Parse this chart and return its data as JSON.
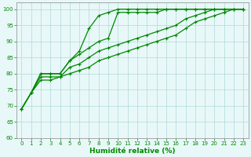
{
  "title": "",
  "xlabel": "Humidité relative (%)",
  "ylabel": "",
  "xlim": [
    -0.5,
    23.5
  ],
  "ylim": [
    60,
    102
  ],
  "yticks": [
    60,
    65,
    70,
    75,
    80,
    85,
    90,
    95,
    100
  ],
  "xticks": [
    0,
    1,
    2,
    3,
    4,
    5,
    6,
    7,
    8,
    9,
    10,
    11,
    12,
    13,
    14,
    15,
    16,
    17,
    18,
    19,
    20,
    21,
    22,
    23
  ],
  "background_color": "#e8f8f8",
  "plot_bg_color": "#e8f8f8",
  "grid_color": "#b0d8d8",
  "line_color": "#008800",
  "series": [
    {
      "x": [
        0,
        1,
        2,
        3,
        4,
        5,
        6,
        7,
        8,
        9,
        10,
        11,
        12,
        13,
        14,
        15,
        16,
        17,
        18,
        19,
        20,
        21,
        22,
        23
      ],
      "y": [
        69,
        74,
        80,
        80,
        80,
        84,
        87,
        94,
        98,
        99,
        100,
        100,
        100,
        100,
        100,
        100,
        100,
        100,
        100,
        100,
        100,
        100,
        100,
        100
      ]
    },
    {
      "x": [
        0,
        1,
        2,
        3,
        4,
        5,
        6,
        7,
        8,
        9,
        10,
        11,
        12,
        13,
        14,
        15,
        16,
        17,
        18,
        19,
        20,
        21,
        22,
        23
      ],
      "y": [
        69,
        74,
        80,
        80,
        80,
        84,
        86,
        88,
        90,
        91,
        99,
        99,
        99,
        99,
        99,
        100,
        100,
        100,
        100,
        100,
        100,
        100,
        100,
        100
      ]
    },
    {
      "x": [
        0,
        1,
        2,
        3,
        4,
        5,
        6,
        7,
        8,
        9,
        10,
        11,
        12,
        13,
        14,
        15,
        16,
        17,
        18,
        19,
        20,
        21,
        22,
        23
      ],
      "y": [
        69,
        74,
        79,
        79,
        79,
        82,
        83,
        85,
        87,
        88,
        89,
        90,
        91,
        92,
        93,
        94,
        95,
        97,
        98,
        99,
        100,
        100,
        100,
        100
      ]
    },
    {
      "x": [
        0,
        1,
        2,
        3,
        4,
        5,
        6,
        7,
        8,
        9,
        10,
        11,
        12,
        13,
        14,
        15,
        16,
        17,
        18,
        19,
        20,
        21,
        22,
        23
      ],
      "y": [
        69,
        74,
        78,
        78,
        79,
        80,
        81,
        82,
        84,
        85,
        86,
        87,
        88,
        89,
        90,
        91,
        92,
        94,
        96,
        97,
        98,
        99,
        100,
        100
      ]
    }
  ],
  "marker": "+",
  "markersize": 3,
  "linewidth": 0.9,
  "xlabel_fontsize": 6.5,
  "tick_fontsize": 5,
  "xlabel_color": "#008800",
  "tick_color": "#008800",
  "figsize": [
    3.2,
    2.0
  ],
  "dpi": 100
}
